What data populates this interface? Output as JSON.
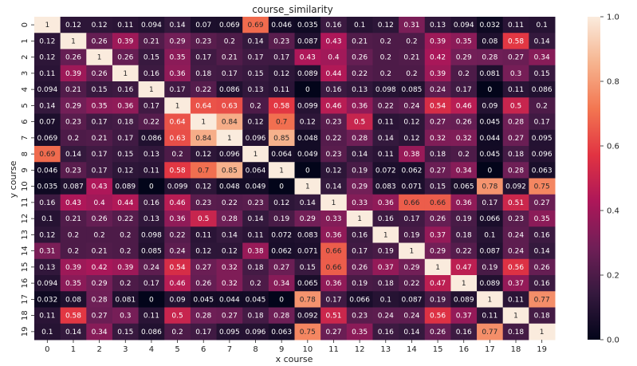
{
  "chart_data": {
    "type": "heatmap",
    "title": "course_similarity",
    "xlabel": "x course",
    "ylabel": "y course",
    "x_categories": [
      "0",
      "1",
      "2",
      "3",
      "4",
      "5",
      "6",
      "7",
      "8",
      "9",
      "10",
      "11",
      "12",
      "13",
      "14",
      "15",
      "16",
      "17",
      "18",
      "19"
    ],
    "y_categories": [
      "0",
      "1",
      "2",
      "3",
      "4",
      "5",
      "6",
      "7",
      "8",
      "9",
      "10",
      "11",
      "12",
      "13",
      "14",
      "15",
      "16",
      "17",
      "18",
      "19"
    ],
    "values": [
      [
        1,
        0.12,
        0.12,
        0.11,
        0.094,
        0.14,
        0.07,
        0.069,
        0.69,
        0.046,
        0.035,
        0.16,
        0.1,
        0.12,
        0.31,
        0.13,
        0.094,
        0.032,
        0.11,
        0.1
      ],
      [
        0.12,
        1,
        0.26,
        0.39,
        0.21,
        0.29,
        0.23,
        0.2,
        0.14,
        0.23,
        0.087,
        0.43,
        0.21,
        0.2,
        0.2,
        0.39,
        0.35,
        0.08,
        0.58,
        0.14
      ],
      [
        0.12,
        0.26,
        1,
        0.26,
        0.15,
        0.35,
        0.17,
        0.21,
        0.17,
        0.17,
        0.43,
        0.4,
        0.26,
        0.2,
        0.21,
        0.42,
        0.29,
        0.28,
        0.27,
        0.34
      ],
      [
        0.11,
        0.39,
        0.26,
        1,
        0.16,
        0.36,
        0.18,
        0.17,
        0.15,
        0.12,
        0.089,
        0.44,
        0.22,
        0.2,
        0.2,
        0.39,
        0.2,
        0.081,
        0.3,
        0.15
      ],
      [
        0.094,
        0.21,
        0.15,
        0.16,
        1,
        0.17,
        0.22,
        0.086,
        0.13,
        0.11,
        0,
        0.16,
        0.13,
        0.098,
        0.085,
        0.24,
        0.17,
        0,
        0.11,
        0.086
      ],
      [
        0.14,
        0.29,
        0.35,
        0.36,
        0.17,
        1,
        0.64,
        0.63,
        0.2,
        0.58,
        0.099,
        0.46,
        0.36,
        0.22,
        0.24,
        0.54,
        0.46,
        0.09,
        0.5,
        0.2
      ],
      [
        0.07,
        0.23,
        0.17,
        0.18,
        0.22,
        0.64,
        1,
        0.84,
        0.12,
        0.7,
        0.12,
        0.23,
        0.5,
        0.11,
        0.12,
        0.27,
        0.26,
        0.045,
        0.28,
        0.17
      ],
      [
        0.069,
        0.2,
        0.21,
        0.17,
        0.086,
        0.63,
        0.84,
        1,
        0.096,
        0.85,
        0.048,
        0.22,
        0.28,
        0.14,
        0.12,
        0.32,
        0.32,
        0.044,
        0.27,
        0.095
      ],
      [
        0.69,
        0.14,
        0.17,
        0.15,
        0.13,
        0.2,
        0.12,
        0.096,
        1,
        0.064,
        0.049,
        0.23,
        0.14,
        0.11,
        0.38,
        0.18,
        0.2,
        0.045,
        0.18,
        0.096
      ],
      [
        0.046,
        0.23,
        0.17,
        0.12,
        0.11,
        0.58,
        0.7,
        0.85,
        0.064,
        1,
        0,
        0.12,
        0.19,
        0.072,
        0.062,
        0.27,
        0.34,
        0,
        0.28,
        0.063
      ],
      [
        0.035,
        0.087,
        0.43,
        0.089,
        0,
        0.099,
        0.12,
        0.048,
        0.049,
        0,
        1,
        0.14,
        0.29,
        0.083,
        0.071,
        0.15,
        0.065,
        0.78,
        0.092,
        0.75
      ],
      [
        0.16,
        0.43,
        0.4,
        0.44,
        0.16,
        0.46,
        0.23,
        0.22,
        0.23,
        0.12,
        0.14,
        1,
        0.33,
        0.36,
        0.66,
        0.66,
        0.36,
        0.17,
        0.51,
        0.27
      ],
      [
        0.1,
        0.21,
        0.26,
        0.22,
        0.13,
        0.36,
        0.5,
        0.28,
        0.14,
        0.19,
        0.29,
        0.33,
        1,
        0.16,
        0.17,
        0.26,
        0.19,
        0.066,
        0.23,
        0.35
      ],
      [
        0.12,
        0.2,
        0.2,
        0.2,
        0.098,
        0.22,
        0.11,
        0.14,
        0.11,
        0.072,
        0.083,
        0.36,
        0.16,
        1,
        0.19,
        0.37,
        0.18,
        0.1,
        0.24,
        0.16
      ],
      [
        0.31,
        0.2,
        0.21,
        0.2,
        0.085,
        0.24,
        0.12,
        0.12,
        0.38,
        0.062,
        0.071,
        0.66,
        0.17,
        0.19,
        1,
        0.29,
        0.22,
        0.087,
        0.24,
        0.14
      ],
      [
        0.13,
        0.39,
        0.42,
        0.39,
        0.24,
        0.54,
        0.27,
        0.32,
        0.18,
        0.27,
        0.15,
        0.66,
        0.26,
        0.37,
        0.29,
        1,
        0.47,
        0.19,
        0.56,
        0.26
      ],
      [
        0.094,
        0.35,
        0.29,
        0.2,
        0.17,
        0.46,
        0.26,
        0.32,
        0.2,
        0.34,
        0.065,
        0.36,
        0.19,
        0.18,
        0.22,
        0.47,
        1,
        0.089,
        0.37,
        0.16
      ],
      [
        0.032,
        0.08,
        0.28,
        0.081,
        0,
        0.09,
        0.045,
        0.044,
        0.045,
        0,
        0.78,
        0.17,
        0.066,
        0.1,
        0.087,
        0.19,
        0.089,
        1,
        0.11,
        0.77
      ],
      [
        0.11,
        0.58,
        0.27,
        0.3,
        0.11,
        0.5,
        0.28,
        0.27,
        0.18,
        0.28,
        0.092,
        0.51,
        0.23,
        0.24,
        0.24,
        0.56,
        0.37,
        0.11,
        1,
        0.18
      ],
      [
        0.1,
        0.14,
        0.34,
        0.15,
        0.086,
        0.2,
        0.17,
        0.095,
        0.096,
        0.063,
        0.75,
        0.27,
        0.35,
        0.16,
        0.14,
        0.26,
        0.16,
        0.77,
        0.18,
        1
      ]
    ],
    "colorbar": {
      "range": [
        0,
        1
      ],
      "ticks": [
        "0.0",
        "0.2",
        "0.4",
        "0.6",
        "0.8",
        "1.0"
      ],
      "colormap": "rocket",
      "stops": [
        "#03051a",
        "#35193e",
        "#701f57",
        "#ad1759",
        "#e13342",
        "#f37651",
        "#f6b48f",
        "#faebdd"
      ]
    }
  }
}
